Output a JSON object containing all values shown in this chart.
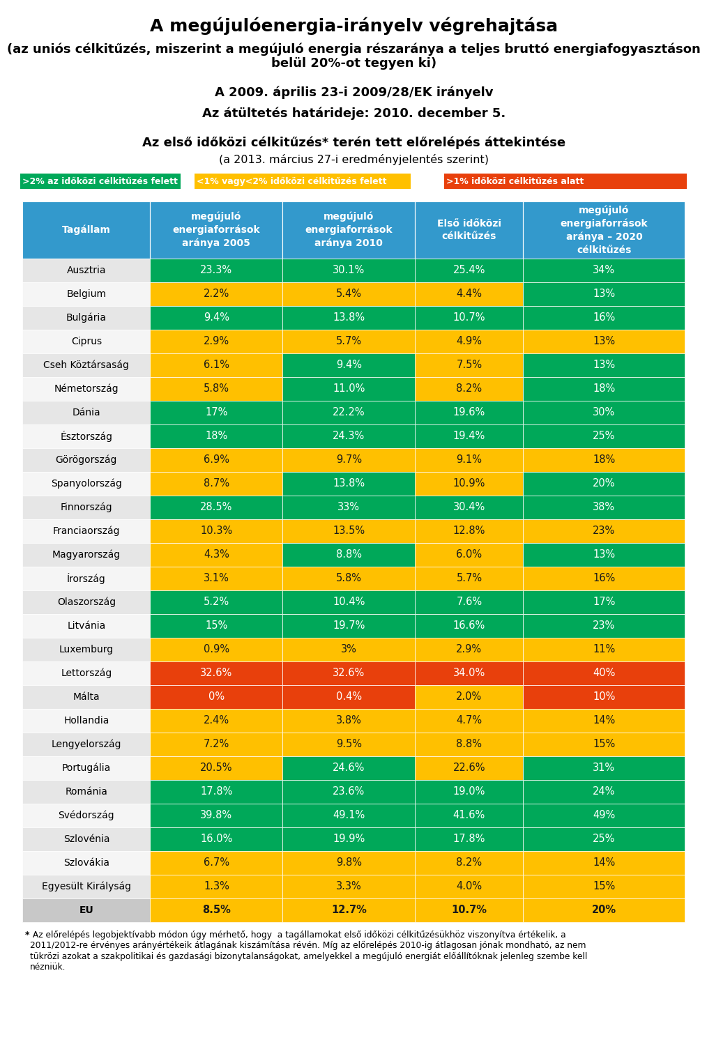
{
  "title1": "A megújulóenergia-irányelv végrehajtása",
  "title2": "(az uniós célkitűzés, miszerint a megújuló energia részaránya a teljes bruttó energiafogyasztáson\nbelül 20%-ot tegyen ki)",
  "title3": "A 2009. április 23-i 2009/28/EK irányelv",
  "title4": "Az átültetés határideje: 2010. december 5.",
  "title5": "Az első időközi célkitűzés* terén tett előrelépés áttekintése",
  "title6": "(a 2013. március 27-i eredményjelentés szerint)",
  "legend": [
    {
      "text": ">2% az időközi célkitűzés felett",
      "color": "#00A859"
    },
    {
      "text": "<1% vagy<2% időközi célkitűzés felett",
      "color": "#FFC000"
    },
    {
      "text": ">1% időközi célkitűzés alatt",
      "color": "#E8400C"
    }
  ],
  "col_headers": [
    "Tagállam",
    "megújuló\nenergiaforrások\naránya 2005",
    "megújuló\nenergiaforrások\naránya 2010",
    "Első időközi\ncélkitűzés",
    "megújuló\nenergiaforrások\naránya – 2020\ncélkitűzés"
  ],
  "header_bg": "#3399CC",
  "rows": [
    {
      "country": "Ausztria",
      "v2005": "23.3%",
      "v2010": "30.1%",
      "target": "25.4%",
      "t2020": "34%",
      "c2005": "#00A859",
      "c2010": "#00A859",
      "ctarget": "#00A859",
      "ct2020": "#00A859"
    },
    {
      "country": "Belgium",
      "v2005": "2.2%",
      "v2010": "5.4%",
      "target": "4.4%",
      "t2020": "13%",
      "c2005": "#FFC000",
      "c2010": "#FFC000",
      "ctarget": "#FFC000",
      "ct2020": "#00A859"
    },
    {
      "country": "Bulgária",
      "v2005": "9.4%",
      "v2010": "13.8%",
      "target": "10.7%",
      "t2020": "16%",
      "c2005": "#00A859",
      "c2010": "#00A859",
      "ctarget": "#00A859",
      "ct2020": "#00A859"
    },
    {
      "country": "Ciprus",
      "v2005": "2.9%",
      "v2010": "5.7%",
      "target": "4.9%",
      "t2020": "13%",
      "c2005": "#FFC000",
      "c2010": "#FFC000",
      "ctarget": "#FFC000",
      "ct2020": "#FFC000"
    },
    {
      "country": "Cseh Köztársaság",
      "v2005": "6.1%",
      "v2010": "9.4%",
      "target": "7.5%",
      "t2020": "13%",
      "c2005": "#FFC000",
      "c2010": "#00A859",
      "ctarget": "#FFC000",
      "ct2020": "#00A859"
    },
    {
      "country": "Németország",
      "v2005": "5.8%",
      "v2010": "11.0%",
      "target": "8.2%",
      "t2020": "18%",
      "c2005": "#FFC000",
      "c2010": "#00A859",
      "ctarget": "#FFC000",
      "ct2020": "#00A859"
    },
    {
      "country": "Dánia",
      "v2005": "17%",
      "v2010": "22.2%",
      "target": "19.6%",
      "t2020": "30%",
      "c2005": "#00A859",
      "c2010": "#00A859",
      "ctarget": "#00A859",
      "ct2020": "#00A859"
    },
    {
      "country": "Észtország",
      "v2005": "18%",
      "v2010": "24.3%",
      "target": "19.4%",
      "t2020": "25%",
      "c2005": "#00A859",
      "c2010": "#00A859",
      "ctarget": "#00A859",
      "ct2020": "#00A859"
    },
    {
      "country": "Görögország",
      "v2005": "6.9%",
      "v2010": "9.7%",
      "target": "9.1%",
      "t2020": "18%",
      "c2005": "#FFC000",
      "c2010": "#FFC000",
      "ctarget": "#FFC000",
      "ct2020": "#FFC000"
    },
    {
      "country": "Spanyolország",
      "v2005": "8.7%",
      "v2010": "13.8%",
      "target": "10.9%",
      "t2020": "20%",
      "c2005": "#FFC000",
      "c2010": "#00A859",
      "ctarget": "#FFC000",
      "ct2020": "#00A859"
    },
    {
      "country": "Finnország",
      "v2005": "28.5%",
      "v2010": "33%",
      "target": "30.4%",
      "t2020": "38%",
      "c2005": "#00A859",
      "c2010": "#00A859",
      "ctarget": "#00A859",
      "ct2020": "#00A859"
    },
    {
      "country": "Franciaország",
      "v2005": "10.3%",
      "v2010": "13.5%",
      "target": "12.8%",
      "t2020": "23%",
      "c2005": "#FFC000",
      "c2010": "#FFC000",
      "ctarget": "#FFC000",
      "ct2020": "#FFC000"
    },
    {
      "country": "Magyarország",
      "v2005": "4.3%",
      "v2010": "8.8%",
      "target": "6.0%",
      "t2020": "13%",
      "c2005": "#FFC000",
      "c2010": "#00A859",
      "ctarget": "#FFC000",
      "ct2020": "#00A859"
    },
    {
      "country": "Írország",
      "v2005": "3.1%",
      "v2010": "5.8%",
      "target": "5.7%",
      "t2020": "16%",
      "c2005": "#FFC000",
      "c2010": "#FFC000",
      "ctarget": "#FFC000",
      "ct2020": "#FFC000"
    },
    {
      "country": "Olaszország",
      "v2005": "5.2%",
      "v2010": "10.4%",
      "target": "7.6%",
      "t2020": "17%",
      "c2005": "#00A859",
      "c2010": "#00A859",
      "ctarget": "#00A859",
      "ct2020": "#00A859"
    },
    {
      "country": "Litvánia",
      "v2005": "15%",
      "v2010": "19.7%",
      "target": "16.6%",
      "t2020": "23%",
      "c2005": "#00A859",
      "c2010": "#00A859",
      "ctarget": "#00A859",
      "ct2020": "#00A859"
    },
    {
      "country": "Luxemburg",
      "v2005": "0.9%",
      "v2010": "3%",
      "target": "2.9%",
      "t2020": "11%",
      "c2005": "#FFC000",
      "c2010": "#FFC000",
      "ctarget": "#FFC000",
      "ct2020": "#FFC000"
    },
    {
      "country": "Lettország",
      "v2005": "32.6%",
      "v2010": "32.6%",
      "target": "34.0%",
      "t2020": "40%",
      "c2005": "#E8400C",
      "c2010": "#E8400C",
      "ctarget": "#E8400C",
      "ct2020": "#E8400C"
    },
    {
      "country": "Málta",
      "v2005": "0%",
      "v2010": "0.4%",
      "target": "2.0%",
      "t2020": "10%",
      "c2005": "#E8400C",
      "c2010": "#E8400C",
      "ctarget": "#FFC000",
      "ct2020": "#E8400C"
    },
    {
      "country": "Hollandia",
      "v2005": "2.4%",
      "v2010": "3.8%",
      "target": "4.7%",
      "t2020": "14%",
      "c2005": "#FFC000",
      "c2010": "#FFC000",
      "ctarget": "#FFC000",
      "ct2020": "#FFC000"
    },
    {
      "country": "Lengyelország",
      "v2005": "7.2%",
      "v2010": "9.5%",
      "target": "8.8%",
      "t2020": "15%",
      "c2005": "#FFC000",
      "c2010": "#FFC000",
      "ctarget": "#FFC000",
      "ct2020": "#FFC000"
    },
    {
      "country": "Portugália",
      "v2005": "20.5%",
      "v2010": "24.6%",
      "target": "22.6%",
      "t2020": "31%",
      "c2005": "#FFC000",
      "c2010": "#00A859",
      "ctarget": "#FFC000",
      "ct2020": "#00A859"
    },
    {
      "country": "Románia",
      "v2005": "17.8%",
      "v2010": "23.6%",
      "target": "19.0%",
      "t2020": "24%",
      "c2005": "#00A859",
      "c2010": "#00A859",
      "ctarget": "#00A859",
      "ct2020": "#00A859"
    },
    {
      "country": "Svédország",
      "v2005": "39.8%",
      "v2010": "49.1%",
      "target": "41.6%",
      "t2020": "49%",
      "c2005": "#00A859",
      "c2010": "#00A859",
      "ctarget": "#00A859",
      "ct2020": "#00A859"
    },
    {
      "country": "Szlovénia",
      "v2005": "16.0%",
      "v2010": "19.9%",
      "target": "17.8%",
      "t2020": "25%",
      "c2005": "#00A859",
      "c2010": "#00A859",
      "ctarget": "#00A859",
      "ct2020": "#00A859"
    },
    {
      "country": "Szlovákia",
      "v2005": "6.7%",
      "v2010": "9.8%",
      "target": "8.2%",
      "t2020": "14%",
      "c2005": "#FFC000",
      "c2010": "#FFC000",
      "ctarget": "#FFC000",
      "ct2020": "#FFC000"
    },
    {
      "country": "Egyesült Királyság",
      "v2005": "1.3%",
      "v2010": "3.3%",
      "target": "4.0%",
      "t2020": "15%",
      "c2005": "#FFC000",
      "c2010": "#FFC000",
      "ctarget": "#FFC000",
      "ct2020": "#FFC000"
    },
    {
      "country": "EU",
      "v2005": "8.5%",
      "v2010": "12.7%",
      "target": "10.7%",
      "t2020": "20%",
      "c2005": "#FFC000",
      "c2010": "#FFC000",
      "ctarget": "#FFC000",
      "ct2020": "#FFC000",
      "is_eu": true
    }
  ],
  "footnote_star": "*",
  "footnote_text": " Az előrelépés legobjektívabb módon úgy mérhető, hogy  a tagállamokat első időközi célkitűzésükhöz viszonyítva értékelik, a\n2011/2012-re érvényes arányértékeik átlagának kiszámítása révén. Míg az előrelépés 2010-ig átlagosan jónak mondható, az nem\ntükrözi azokat a szakpolitikai és gazdasági bizonytalanságokat, amelyekkel a megújuló energiát előállítóknak jelenleg szembe kell\nnézniük.",
  "row_bg_even": "#E6E6E6",
  "row_bg_odd": "#F5F5F5",
  "eu_bg": "#C8C8C8"
}
